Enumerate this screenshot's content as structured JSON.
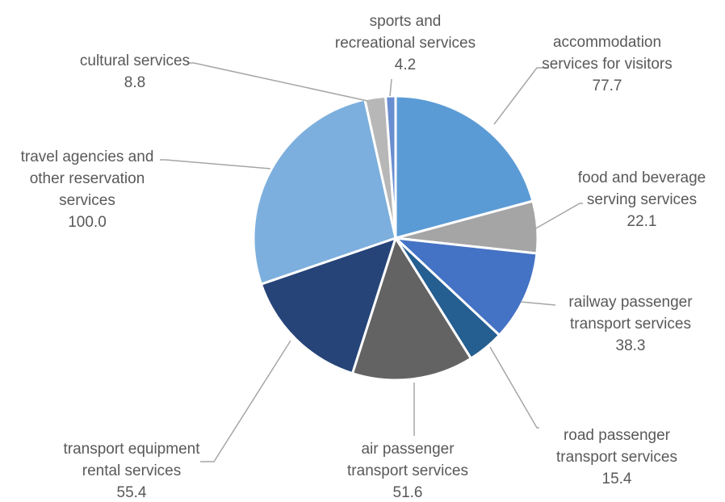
{
  "chart_data": {
    "type": "pie",
    "title": "",
    "legend": "none",
    "start_angle_deg": 0,
    "direction": "clockwise",
    "slices": [
      {
        "label_lines": [
          "accommodation",
          "services for visitors"
        ],
        "value": 77.7,
        "display": "77.7",
        "color": "#5b9bd5"
      },
      {
        "label_lines": [
          "food and beverage",
          "serving services"
        ],
        "value": 22.1,
        "display": "22.1",
        "color": "#a5a5a5"
      },
      {
        "label_lines": [
          "railway passenger",
          "transport services"
        ],
        "value": 38.3,
        "display": "38.3",
        "color": "#4472c4"
      },
      {
        "label_lines": [
          "road passenger",
          "transport services"
        ],
        "value": 15.4,
        "display": "15.4",
        "color": "#255e91"
      },
      {
        "label_lines": [
          "air passenger",
          "transport services"
        ],
        "value": 51.6,
        "display": "51.6",
        "color": "#636363"
      },
      {
        "label_lines": [
          "transport equipment",
          "rental services"
        ],
        "value": 55.4,
        "display": "55.4",
        "color": "#264478"
      },
      {
        "label_lines": [
          "travel agencies and",
          "other reservation",
          "services"
        ],
        "value": 100.0,
        "display": "100.0",
        "color": "#7cafdd"
      },
      {
        "label_lines": [
          "cultural services"
        ],
        "value": 8.8,
        "display": "8.8",
        "color": "#b7b7b7"
      },
      {
        "label_lines": [
          "sports and",
          "recreational services"
        ],
        "value": 4.2,
        "display": "4.2",
        "color": "#698ed0"
      }
    ]
  }
}
